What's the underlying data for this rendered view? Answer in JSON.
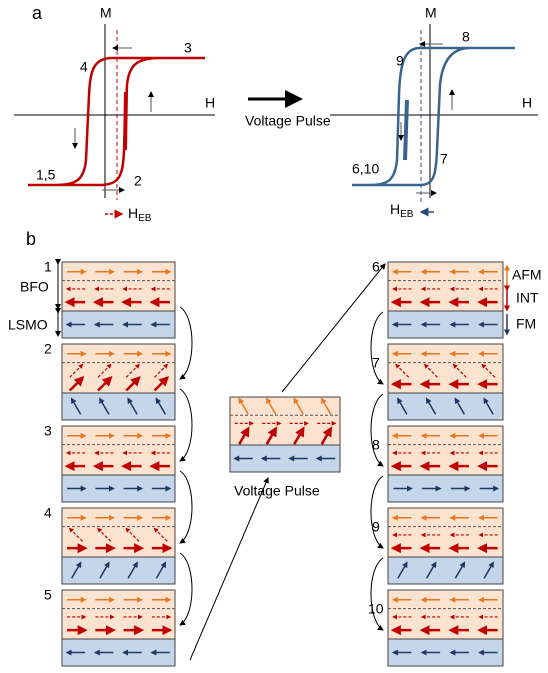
{
  "panel_a": {
    "label": "a",
    "left_loop": {
      "axis_m": "M",
      "axis_h": "H",
      "points": [
        "3",
        "4",
        "1,5",
        "2"
      ],
      "heb": {
        "main": "H",
        "sub": "EB"
      }
    },
    "arrow_label": "Voltage Pulse",
    "right_loop": {
      "axis_m": "M",
      "axis_h": "H",
      "points": [
        "8",
        "9",
        "6,10",
        "7"
      ],
      "heb": {
        "main": "H",
        "sub": "EB"
      }
    }
  },
  "panel_b": {
    "label": "b",
    "layer_labels": [
      "BFO",
      "LSMO"
    ],
    "left_states": [
      "1",
      "2",
      "3",
      "4",
      "5"
    ],
    "pulse_label": "Voltage Pulse",
    "right_states": [
      "6",
      "7",
      "8",
      "9",
      "10"
    ],
    "right_layer_labels": [
      "AFM",
      "INT",
      "FM"
    ]
  }
}
